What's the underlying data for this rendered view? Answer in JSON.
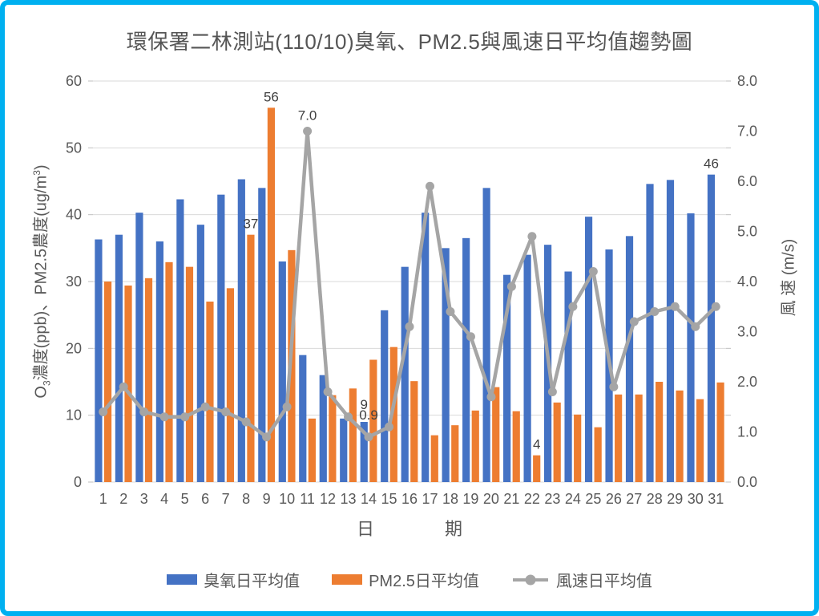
{
  "chart_data": {
    "type": "bar+line combo",
    "title": "環保署二林測站(110/10)臭氧、PM2.5與風速日平均值趨勢圖",
    "xlabel": "日 期",
    "xlabel_display": "日　　　　期",
    "categories": [
      1,
      2,
      3,
      4,
      5,
      6,
      7,
      8,
      9,
      10,
      11,
      12,
      13,
      14,
      15,
      16,
      17,
      18,
      19,
      20,
      21,
      22,
      23,
      24,
      25,
      26,
      27,
      28,
      29,
      30,
      31
    ],
    "series": [
      {
        "key": "ozone",
        "name": "臭氧日平均值",
        "type": "bar",
        "yaxis": "left",
        "color": "#4472C4",
        "values": [
          36.3,
          37,
          40.3,
          36,
          42.3,
          38.5,
          43,
          45.3,
          44,
          33,
          19,
          16,
          9.5,
          9,
          25.7,
          32.2,
          40.3,
          35,
          36.5,
          44,
          31,
          34,
          35.5,
          31.5,
          39.7,
          34.8,
          36.8,
          44.6,
          45.2,
          40.2,
          46
        ]
      },
      {
        "key": "pm25",
        "name": "PM2.5日平均值",
        "type": "bar",
        "yaxis": "left",
        "color": "#ED7D31",
        "values": [
          30,
          29.4,
          30.5,
          32.9,
          32.2,
          27,
          29,
          37,
          56,
          34.7,
          9.5,
          13,
          14,
          18.3,
          20.2,
          15.1,
          7,
          8.5,
          10.7,
          14.2,
          10.6,
          4,
          11.9,
          10.1,
          8.2,
          13.1,
          13.1,
          15,
          13.7,
          12.4,
          14.9
        ]
      },
      {
        "key": "wind",
        "name": "風速日平均值",
        "type": "line",
        "yaxis": "right",
        "color": "#A5A5A5",
        "values": [
          1.4,
          1.9,
          1.4,
          1.3,
          1.3,
          1.5,
          1.4,
          1.2,
          0.9,
          1.5,
          7.0,
          1.8,
          1.3,
          0.9,
          1.1,
          3.1,
          5.9,
          3.4,
          2.9,
          1.7,
          3.9,
          4.9,
          1.8,
          3.5,
          4.2,
          1.9,
          3.2,
          3.4,
          3.5,
          3.1,
          3.5
        ]
      }
    ],
    "left_axis": {
      "label": "O3濃度(ppb)、PM2.5農度(ug/m3)",
      "label_parts": {
        "p1": "O",
        "sub1": "3",
        "p2": "濃度(ppb)、PM2.5農度(ug/m",
        "sup1": "3",
        "p3": ")"
      },
      "min": 0,
      "max": 60,
      "step": 10,
      "tick_labels": [
        "0",
        "10",
        "20",
        "30",
        "40",
        "50",
        "60"
      ]
    },
    "right_axis": {
      "label": "風 速 (m/s)",
      "min": 0,
      "max": 8,
      "step": 1,
      "tick_labels": [
        "0.0",
        "1.0",
        "2.0",
        "3.0",
        "4.0",
        "5.0",
        "6.0",
        "7.0",
        "8.0"
      ]
    },
    "point_labels": [
      {
        "series": 1,
        "day": 8,
        "text": "37"
      },
      {
        "series": 1,
        "day": 9,
        "text": "56"
      },
      {
        "series": 2,
        "day": 11,
        "text": "7.0"
      },
      {
        "series": 0,
        "day": 14,
        "text": "9",
        "dy": -8
      },
      {
        "series": 2,
        "day": 14,
        "text": "0.9",
        "dy": -8
      },
      {
        "series": 1,
        "day": 22,
        "text": "4"
      },
      {
        "series": 0,
        "day": 31,
        "text": "46"
      }
    ],
    "grid": true,
    "legend_position": "bottom"
  },
  "colors": {
    "frame_border": "#00B0F0",
    "gridline": "#D9D9D9",
    "tick": "#BFBFBF",
    "axis_text": "#595959",
    "title_text": "#555555",
    "data_label_text": "#404040",
    "background": "#FFFFFF"
  }
}
